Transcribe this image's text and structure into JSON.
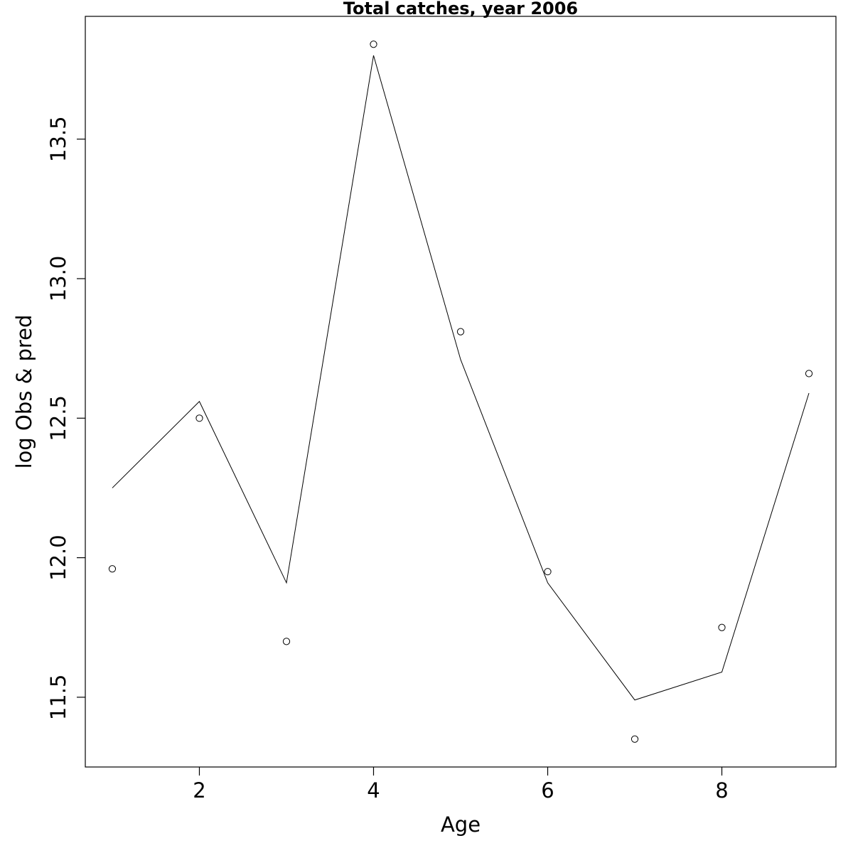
{
  "chart_data": {
    "type": "line",
    "title": "Total catches, year 2006",
    "xlabel": "Age",
    "ylabel": "log Obs & pred",
    "xlim": [
      0.69,
      9.31
    ],
    "ylim": [
      11.25,
      13.94
    ],
    "x_ticks": [
      2,
      4,
      6,
      8
    ],
    "x_tick_labels": [
      "2",
      "4",
      "6",
      "8"
    ],
    "y_ticks": [
      11.5,
      12.0,
      12.5,
      13.0,
      13.5
    ],
    "y_tick_labels": [
      "11.5",
      "12.0",
      "12.5",
      "13.0",
      "13.5"
    ],
    "grid": false,
    "legend": "none",
    "series": [
      {
        "style": "points",
        "marker": "open-circle",
        "x": [
          1,
          2,
          3,
          4,
          5,
          6,
          7,
          8,
          9
        ],
        "values": [
          11.96,
          12.5,
          11.7,
          13.84,
          12.81,
          11.95,
          11.35,
          11.75,
          12.66
        ]
      },
      {
        "style": "line",
        "x": [
          1,
          2,
          3,
          4,
          5,
          6,
          7,
          8,
          9
        ],
        "values": [
          12.25,
          12.56,
          11.91,
          13.8,
          12.71,
          11.91,
          11.49,
          11.59,
          12.59
        ]
      }
    ]
  }
}
